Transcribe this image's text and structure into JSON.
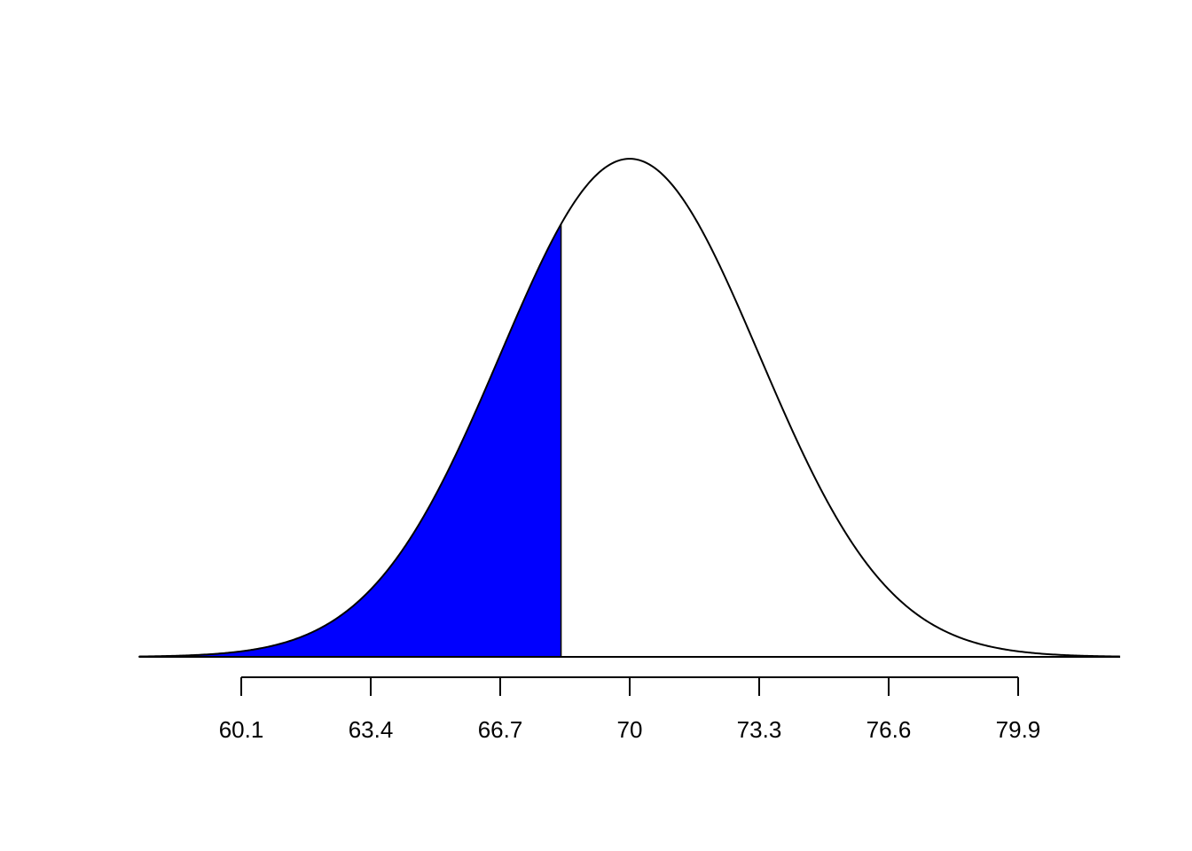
{
  "chart_data": {
    "type": "density",
    "mean": 70,
    "sd": 3.3,
    "shade_upper": 68.25,
    "shade_color": "#0000ff",
    "line_color": "#000000",
    "xlim": [
      57.5,
      82.5
    ],
    "xticks": [
      60.1,
      63.4,
      66.7,
      70,
      73.3,
      76.6,
      79.9
    ],
    "ylim": [
      0,
      0.125
    ]
  }
}
